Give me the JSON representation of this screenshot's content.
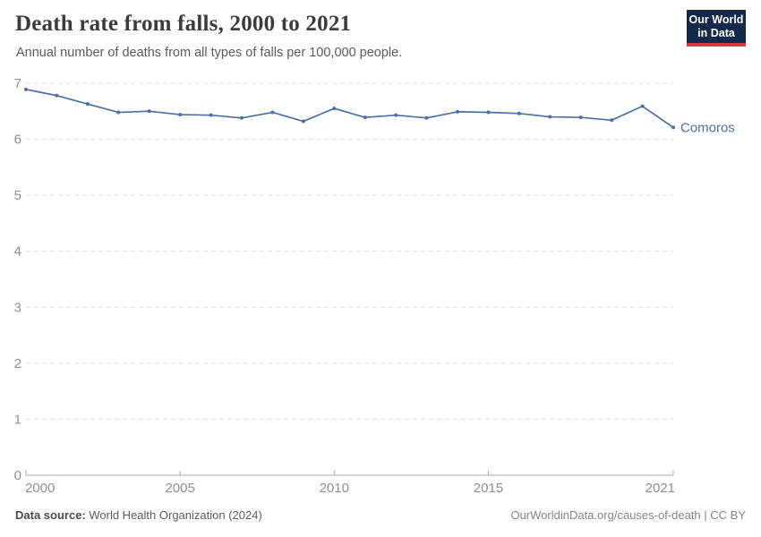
{
  "chart_data": {
    "type": "line",
    "title": "Death rate from falls, 2000 to 2021",
    "subtitle": "Annual number of deaths from all types of falls per 100,000 people.",
    "xlabel": "",
    "ylabel": "",
    "x": [
      2000,
      2001,
      2002,
      2003,
      2004,
      2005,
      2006,
      2007,
      2008,
      2009,
      2010,
      2011,
      2012,
      2013,
      2014,
      2015,
      2016,
      2017,
      2018,
      2019,
      2020,
      2021
    ],
    "series": [
      {
        "name": "Comoros",
        "color": "#4C6FA5",
        "values": [
          6.89,
          6.78,
          6.63,
          6.48,
          6.5,
          6.44,
          6.43,
          6.38,
          6.48,
          6.32,
          6.55,
          6.39,
          6.43,
          6.38,
          6.49,
          6.48,
          6.46,
          6.4,
          6.39,
          6.34,
          6.59,
          6.21
        ]
      }
    ],
    "xlim": [
      2000,
      2021
    ],
    "ylim": [
      0,
      7
    ],
    "xticks": [
      2000,
      2005,
      2010,
      2015,
      2021
    ],
    "yticks": [
      0,
      1,
      2,
      3,
      4,
      5,
      6,
      7
    ],
    "grid": "horizontal-dashed",
    "legend": "end-of-line-label"
  },
  "logo": {
    "line1": "Our World",
    "line2": "in Data",
    "background": "#12294B",
    "bar_color": "#D93A3F"
  },
  "footer": {
    "source_label": "Data source:",
    "source_value": " World Health Organization (2024)",
    "attribution": "OurWorldinData.org/causes-of-death | CC BY"
  },
  "colors": {
    "title": "#3c3c3c",
    "subtitle": "#5b5b5b",
    "tick_label": "#8f8f8f",
    "gridline": "#dcdcdc",
    "axis": "#a8a8a8",
    "line": "#4C6FA5"
  }
}
